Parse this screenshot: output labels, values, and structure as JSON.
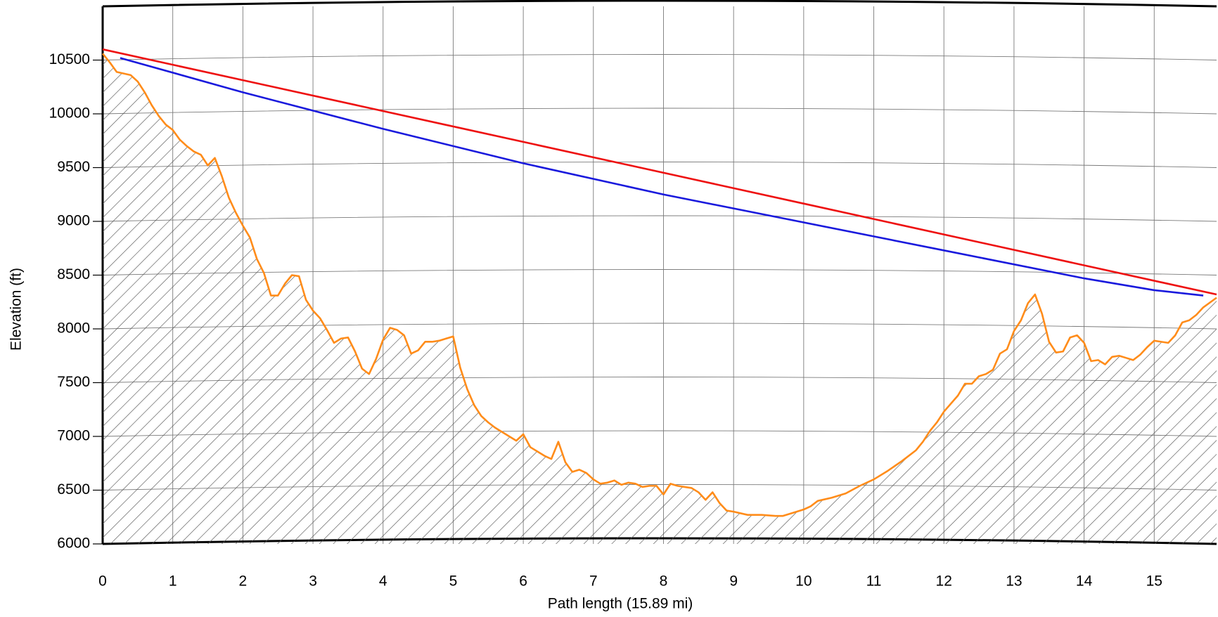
{
  "chart_data": {
    "type": "line",
    "x_label": "Path length (15.89 mi)",
    "y_label": "Elevation (ft)",
    "xlim": [
      0,
      15.89
    ],
    "ylim": [
      6000,
      11000
    ],
    "xticks": [
      0,
      1,
      2,
      3,
      4,
      5,
      6,
      7,
      8,
      9,
      10,
      11,
      12,
      13,
      14,
      15
    ],
    "yticks": [
      6000,
      6500,
      7000,
      7500,
      8000,
      8500,
      9000,
      9500,
      10000,
      10500
    ],
    "grid": true,
    "series": [
      {
        "color": "#ff8c1a",
        "fill": true,
        "x": [
          0,
          0.1,
          0.2,
          0.4,
          0.5,
          0.6,
          0.7,
          0.8,
          0.9,
          1.0,
          1.1,
          1.2,
          1.3,
          1.4,
          1.5,
          1.6,
          1.7,
          1.8,
          1.9,
          2.0,
          2.1,
          2.2,
          2.3,
          2.4,
          2.5,
          2.6,
          2.7,
          2.8,
          2.9,
          3.0,
          3.1,
          3.2,
          3.3,
          3.4,
          3.5,
          3.6,
          3.7,
          3.8,
          3.9,
          4.0,
          4.1,
          4.2,
          4.3,
          4.4,
          4.5,
          4.6,
          4.7,
          4.8,
          4.9,
          5.0,
          5.1,
          5.2,
          5.3,
          5.4,
          5.5,
          5.6,
          5.7,
          5.8,
          5.9,
          6.0,
          6.1,
          6.2,
          6.3,
          6.4,
          6.5,
          6.6,
          6.7,
          6.8,
          6.9,
          7.0,
          7.1,
          7.2,
          7.3,
          7.4,
          7.5,
          7.6,
          7.7,
          7.8,
          7.9,
          8.0,
          8.1,
          8.2,
          8.3,
          8.4,
          8.5,
          8.6,
          8.7,
          8.8,
          8.9,
          9.0,
          9.2,
          9.4,
          9.6,
          9.7,
          9.9,
          10.0,
          10.1,
          10.2,
          10.4,
          10.6,
          10.8,
          11.0,
          11.2,
          11.4,
          11.6,
          11.7,
          11.8,
          11.9,
          12.0,
          12.2,
          12.3,
          12.4,
          12.5,
          12.6,
          12.7,
          12.8,
          12.9,
          13.0,
          13.1,
          13.2,
          13.3,
          13.4,
          13.5,
          13.6,
          13.7,
          13.8,
          13.9,
          14.0,
          14.1,
          14.2,
          14.3,
          14.4,
          14.5,
          14.6,
          14.7,
          14.8,
          14.9,
          15.0,
          15.1,
          15.2,
          15.3,
          15.4,
          15.5,
          15.6,
          15.7,
          15.89
        ],
        "values": [
          10560,
          10480,
          10390,
          10360,
          10300,
          10200,
          10080,
          9980,
          9900,
          9850,
          9760,
          9700,
          9650,
          9620,
          9520,
          9590,
          9420,
          9220,
          9080,
          8960,
          8850,
          8650,
          8520,
          8310,
          8310,
          8420,
          8500,
          8490,
          8270,
          8170,
          8100,
          7990,
          7870,
          7910,
          7920,
          7790,
          7630,
          7580,
          7720,
          7900,
          8010,
          7990,
          7940,
          7770,
          7800,
          7880,
          7880,
          7890,
          7910,
          7930,
          7640,
          7440,
          7290,
          7190,
          7130,
          7080,
          7040,
          7000,
          6960,
          7020,
          6900,
          6860,
          6820,
          6790,
          6950,
          6760,
          6670,
          6690,
          6660,
          6600,
          6560,
          6570,
          6590,
          6550,
          6570,
          6560,
          6530,
          6540,
          6540,
          6460,
          6560,
          6540,
          6530,
          6520,
          6480,
          6410,
          6480,
          6380,
          6310,
          6300,
          6270,
          6270,
          6260,
          6260,
          6300,
          6320,
          6350,
          6400,
          6430,
          6470,
          6540,
          6600,
          6680,
          6770,
          6870,
          6950,
          7050,
          7130,
          7230,
          7380,
          7490,
          7490,
          7560,
          7580,
          7620,
          7770,
          7810,
          7980,
          8080,
          8240,
          8320,
          8140,
          7880,
          7780,
          7790,
          7920,
          7940,
          7870,
          7700,
          7710,
          7670,
          7740,
          7750,
          7730,
          7710,
          7760,
          7830,
          7890,
          7880,
          7870,
          7940,
          8060,
          8080,
          8130,
          8200,
          8290
        ]
      },
      {
        "color": "#ee1111",
        "x": [
          0,
          15.89
        ],
        "values": [
          10600,
          8320
        ]
      },
      {
        "color": "#1a1add",
        "x": [
          0.25,
          2,
          4,
          6,
          8,
          10,
          12,
          14,
          15,
          15.7
        ],
        "values": [
          10520,
          10200,
          9860,
          9540,
          9250,
          8990,
          8730,
          8470,
          8360,
          8310
        ]
      }
    ]
  }
}
